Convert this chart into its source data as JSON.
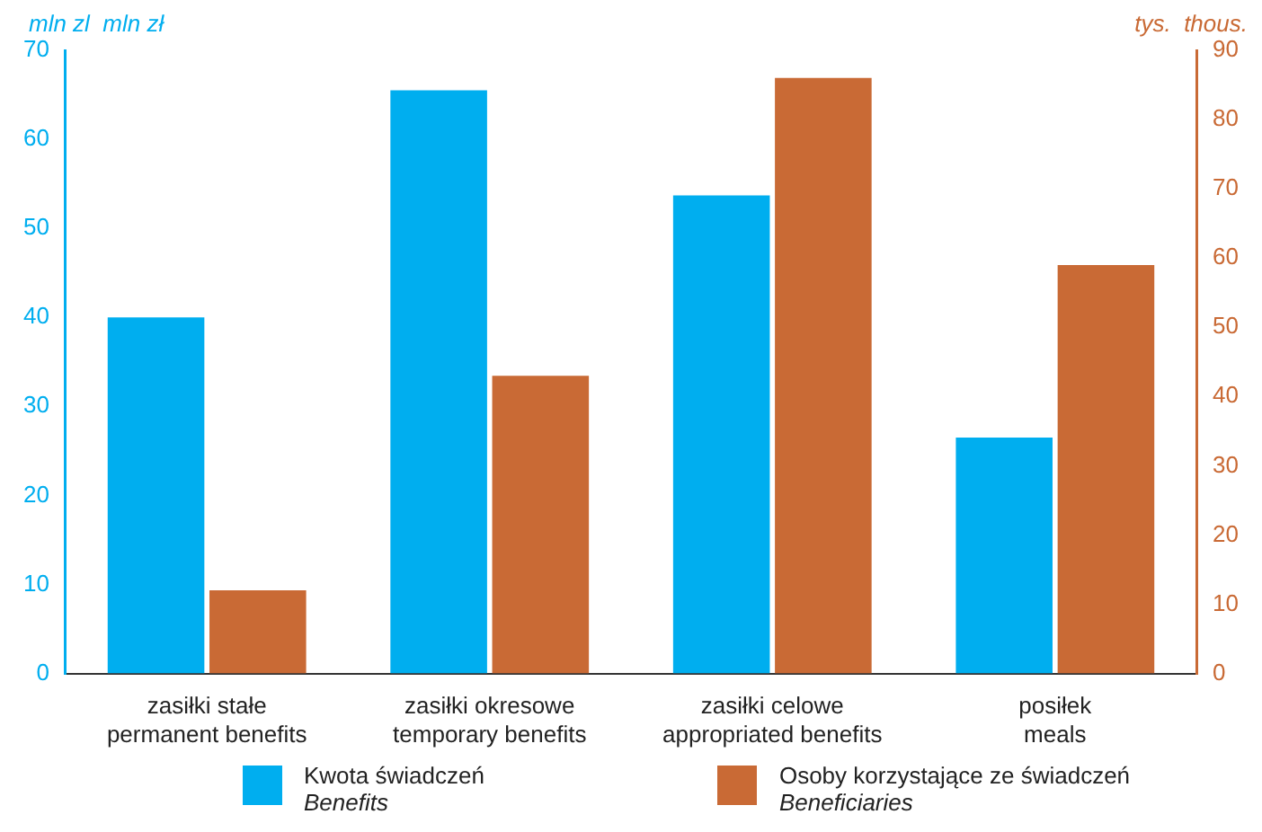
{
  "chart_data": {
    "type": "bar",
    "ylabel": "mln zl  mln zł",
    "y2label": "tys.  thous.",
    "categories": [
      "zasiłki stałe\npermanent benefits",
      "zasiłki okresowe\ntemporary benefits",
      "zasiłki celowe\nappropriated benefits",
      "posiłek\nmeals"
    ],
    "series": [
      {
        "name": "Kwota świadczeń\nBenefits",
        "color": "#00aeef",
        "values": [
          40,
          65.5,
          53.7,
          26.5
        ]
      },
      {
        "name": "Osoby korzystające ze świadczeń\nBeneficiaries",
        "color": "#c96a35",
        "values": [
          12,
          43,
          86,
          59
        ],
        "axis": "y2"
      }
    ],
    "ylim": [
      0,
      70
    ],
    "yticks": [
      0,
      10,
      20,
      30,
      40,
      50,
      60,
      70
    ],
    "y2lim": [
      0,
      90
    ],
    "y2ticks": [
      0,
      10,
      20,
      30,
      40,
      50,
      60,
      70,
      80,
      90
    ],
    "grid": false,
    "legend": "bottom"
  }
}
